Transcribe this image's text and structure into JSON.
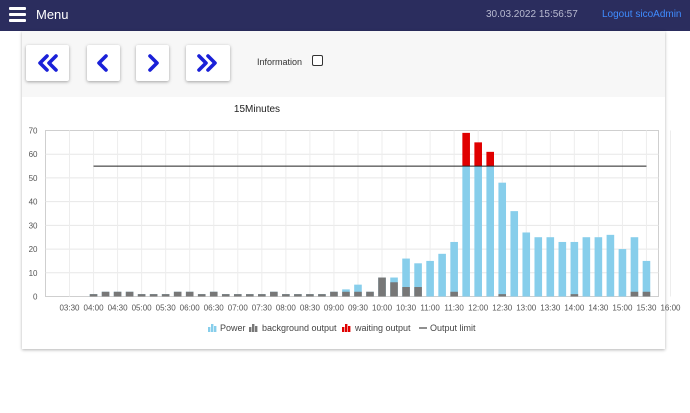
{
  "header": {
    "menu_label": "Menu",
    "datetime": "30.03.2022 15:56:57",
    "logout_label": "Logout sicoAdmin"
  },
  "toolbar": {
    "information_label": "Information",
    "information_checked": false
  },
  "chart_data": {
    "type": "bar",
    "title": "15Minutes",
    "x_ticks": [
      "03:30",
      "04:00",
      "04:30",
      "05:00",
      "05:30",
      "06:00",
      "06:30",
      "07:00",
      "07:30",
      "08:00",
      "08:30",
      "09:00",
      "09:30",
      "10:00",
      "10:30",
      "11:00",
      "11:30",
      "12:00",
      "12:30",
      "13:00",
      "13:30",
      "14:00",
      "14:30",
      "15:00",
      "15:30",
      "16:00"
    ],
    "y_ticks": [
      0,
      10,
      20,
      30,
      40,
      50,
      60,
      70
    ],
    "ylim": [
      0,
      70
    ],
    "grid": true,
    "legend_position": "bottom",
    "legend": [
      {
        "name": "Power",
        "color": "#87ceeb",
        "kind": "bar"
      },
      {
        "name": "background output",
        "color": "#777777",
        "kind": "bar"
      },
      {
        "name": "waiting output",
        "color": "#e00000",
        "kind": "bar"
      },
      {
        "name": "Output limit",
        "color": "#222222",
        "kind": "line"
      }
    ],
    "x": [
      "04:00",
      "04:15",
      "04:30",
      "04:45",
      "05:00",
      "05:15",
      "05:30",
      "05:45",
      "06:00",
      "06:15",
      "06:30",
      "06:45",
      "07:00",
      "07:15",
      "07:30",
      "07:45",
      "08:00",
      "08:15",
      "08:30",
      "08:45",
      "09:00",
      "09:15",
      "09:30",
      "09:45",
      "10:00",
      "10:15",
      "10:30",
      "10:45",
      "11:00",
      "11:15",
      "11:30",
      "11:45",
      "12:00",
      "12:15",
      "12:30",
      "12:45",
      "13:00",
      "13:15",
      "13:30",
      "13:45",
      "14:00",
      "14:15",
      "14:30",
      "14:45",
      "15:00",
      "15:15",
      "15:30"
    ],
    "series": [
      {
        "name": "Power",
        "values": [
          1,
          2,
          2,
          2,
          1,
          1,
          1,
          2,
          2,
          1,
          2,
          1,
          1,
          1,
          1,
          2,
          1,
          1,
          1,
          1,
          2,
          3,
          5,
          2,
          8,
          8,
          16,
          14,
          15,
          18,
          23,
          55,
          55,
          55,
          48,
          36,
          27,
          25,
          25,
          23,
          23,
          25,
          25,
          26,
          20,
          25,
          15
        ]
      },
      {
        "name": "background output",
        "values": [
          1,
          2,
          2,
          2,
          1,
          1,
          1,
          2,
          2,
          1,
          2,
          1,
          1,
          1,
          1,
          2,
          1,
          1,
          1,
          1,
          2,
          2,
          2,
          2,
          8,
          6,
          4,
          4,
          0,
          0,
          2,
          0,
          0,
          0,
          1,
          0,
          0,
          0,
          0,
          0,
          1,
          0,
          0,
          0,
          0,
          2,
          2
        ]
      },
      {
        "name": "waiting output",
        "values": [
          0,
          0,
          0,
          0,
          0,
          0,
          0,
          0,
          0,
          0,
          0,
          0,
          0,
          0,
          0,
          0,
          0,
          0,
          0,
          0,
          0,
          0,
          0,
          0,
          0,
          0,
          0,
          0,
          0,
          0,
          0,
          14,
          10,
          6,
          0,
          0,
          0,
          0,
          0,
          0,
          0,
          0,
          0,
          0,
          0,
          0,
          0
        ]
      },
      {
        "name": "Output limit",
        "x_range": [
          "04:00",
          "15:30"
        ],
        "value": 55
      }
    ]
  }
}
